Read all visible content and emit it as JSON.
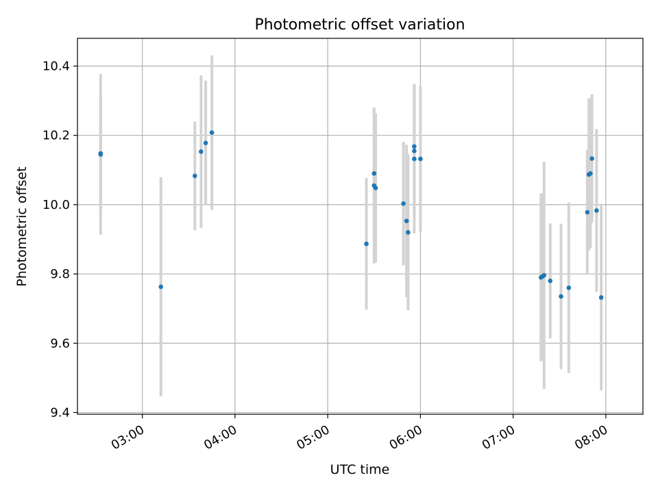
{
  "chart_data": {
    "type": "scatter",
    "title": "Photometric offset variation",
    "xlabel": "UTC time",
    "ylabel": "Photometric offset",
    "x_axis_type": "time",
    "xlim": [
      "02:18",
      "08:24"
    ],
    "ylim": [
      9.395,
      10.48
    ],
    "x_ticks": [
      "03:00",
      "04:00",
      "05:00",
      "06:00",
      "07:00",
      "08:00"
    ],
    "y_ticks": [
      "9.4",
      "9.6",
      "9.8",
      "10.0",
      "10.2",
      "10.4"
    ],
    "grid": true,
    "legend": "none",
    "point_color": "#1f77b4",
    "errorbar_color": "#d3d3d3",
    "points": [
      {
        "x": "02:33",
        "y": 10.145,
        "err": 0.232
      },
      {
        "x": "02:33",
        "y": 10.148,
        "err": 0.17
      },
      {
        "x": "03:12",
        "y": 9.763,
        "err": 0.316
      },
      {
        "x": "03:34",
        "y": 10.083,
        "err": 0.157
      },
      {
        "x": "03:38",
        "y": 10.153,
        "err": 0.22
      },
      {
        "x": "03:41",
        "y": 10.178,
        "err": 0.18
      },
      {
        "x": "03:45",
        "y": 10.208,
        "err": 0.223
      },
      {
        "x": "05:25",
        "y": 9.887,
        "err": 0.19
      },
      {
        "x": "05:30",
        "y": 10.09,
        "err": 0.19
      },
      {
        "x": "05:30",
        "y": 10.055,
        "err": 0.225
      },
      {
        "x": "05:31",
        "y": 10.048,
        "err": 0.215
      },
      {
        "x": "05:49",
        "y": 10.003,
        "err": 0.178
      },
      {
        "x": "05:51",
        "y": 9.953,
        "err": 0.22
      },
      {
        "x": "05:52",
        "y": 9.92,
        "err": 0.225
      },
      {
        "x": "05:56",
        "y": 10.168,
        "err": 0.18
      },
      {
        "x": "05:56",
        "y": 10.155,
        "err": 0.18
      },
      {
        "x": "05:56",
        "y": 10.132,
        "err": 0.215
      },
      {
        "x": "06:00",
        "y": 10.132,
        "err": 0.21
      },
      {
        "x": "07:18",
        "y": 9.79,
        "err": 0.242
      },
      {
        "x": "07:19",
        "y": 9.793,
        "err": 0.24
      },
      {
        "x": "07:20",
        "y": 9.796,
        "err": 0.328
      },
      {
        "x": "07:24",
        "y": 9.78,
        "err": 0.166
      },
      {
        "x": "07:31",
        "y": 9.735,
        "err": 0.21
      },
      {
        "x": "07:36",
        "y": 9.76,
        "err": 0.246
      },
      {
        "x": "07:48",
        "y": 9.978,
        "err": 0.18
      },
      {
        "x": "07:49",
        "y": 10.087,
        "err": 0.22
      },
      {
        "x": "07:50",
        "y": 10.09,
        "err": 0.216
      },
      {
        "x": "07:51",
        "y": 10.133,
        "err": 0.185
      },
      {
        "x": "07:54",
        "y": 9.983,
        "err": 0.235
      },
      {
        "x": "07:57",
        "y": 9.732,
        "err": 0.268
      }
    ]
  }
}
